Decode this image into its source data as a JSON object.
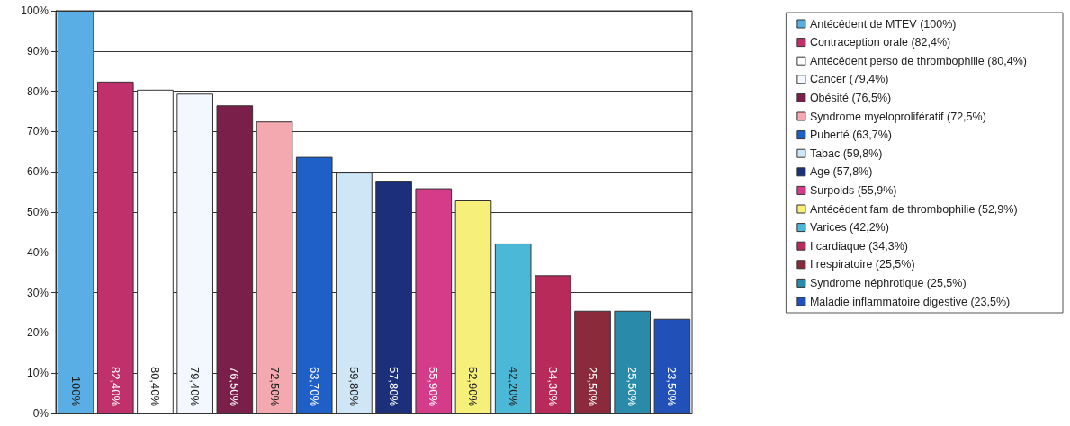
{
  "chart_data": {
    "type": "bar",
    "categories": [
      null,
      null,
      null,
      null,
      null,
      null,
      null,
      null,
      null,
      null,
      null,
      null,
      null,
      null,
      null,
      null
    ],
    "ylim": [
      0,
      100
    ],
    "yticks": [
      {
        "value": 0,
        "label": "0%"
      },
      {
        "value": 10,
        "label": "10%"
      },
      {
        "value": 20,
        "label": "20%"
      },
      {
        "value": 30,
        "label": "30%"
      },
      {
        "value": 40,
        "label": "40%"
      },
      {
        "value": 50,
        "label": "50%"
      },
      {
        "value": 60,
        "label": "60%"
      },
      {
        "value": 70,
        "label": "70%"
      },
      {
        "value": 80,
        "label": "80%"
      },
      {
        "value": 90,
        "label": "90%"
      },
      {
        "value": 100,
        "label": "100%"
      }
    ],
    "grid": "y",
    "legend": "right",
    "series": [
      {
        "name": "Antécédent de MTEV (100%)",
        "color": "#5aaee6",
        "values": [
          100,
          null,
          null,
          null,
          null,
          null,
          null,
          null,
          null,
          null,
          null,
          null,
          null,
          null,
          null,
          null
        ],
        "value_labels": [
          "100%",
          null,
          null,
          null,
          null,
          null,
          null,
          null,
          null,
          null,
          null,
          null,
          null,
          null,
          null,
          null
        ]
      },
      {
        "name": "Contraception orale (82,4%)",
        "color": "#c0306a",
        "values": [
          null,
          82.4,
          null,
          null,
          null,
          null,
          null,
          null,
          null,
          null,
          null,
          null,
          null,
          null,
          null,
          null
        ],
        "value_labels": [
          null,
          "82,40%",
          null,
          null,
          null,
          null,
          null,
          null,
          null,
          null,
          null,
          null,
          null,
          null,
          null,
          null
        ]
      },
      {
        "name": "Antécédent perso de thrombophilie (80,4%)",
        "color": "#ffffff",
        "values": [
          null,
          null,
          80.4,
          null,
          null,
          null,
          null,
          null,
          null,
          null,
          null,
          null,
          null,
          null,
          null,
          null
        ],
        "value_labels": [
          null,
          null,
          "80,40%",
          null,
          null,
          null,
          null,
          null,
          null,
          null,
          null,
          null,
          null,
          null,
          null,
          null
        ]
      },
      {
        "name": "Cancer (79,4%)",
        "color": "#f2f8fd",
        "values": [
          null,
          null,
          null,
          79.4,
          null,
          null,
          null,
          null,
          null,
          null,
          null,
          null,
          null,
          null,
          null,
          null
        ],
        "value_labels": [
          null,
          null,
          null,
          "79,40%",
          null,
          null,
          null,
          null,
          null,
          null,
          null,
          null,
          null,
          null,
          null,
          null
        ]
      },
      {
        "name": "Obésité (76,5%)",
        "color": "#7a1f4a",
        "values": [
          null,
          null,
          null,
          null,
          76.5,
          null,
          null,
          null,
          null,
          null,
          null,
          null,
          null,
          null,
          null,
          null
        ],
        "value_labels": [
          null,
          null,
          null,
          null,
          "76,50%",
          null,
          null,
          null,
          null,
          null,
          null,
          null,
          null,
          null,
          null,
          null
        ]
      },
      {
        "name": "Syndrome myeloprolifératif (72,5%)",
        "color": "#f4a8b0",
        "values": [
          null,
          null,
          null,
          null,
          null,
          72.5,
          null,
          null,
          null,
          null,
          null,
          null,
          null,
          null,
          null,
          null
        ],
        "value_labels": [
          null,
          null,
          null,
          null,
          null,
          "72,50%",
          null,
          null,
          null,
          null,
          null,
          null,
          null,
          null,
          null,
          null
        ]
      },
      {
        "name": "Puberté (63,7%)",
        "color": "#1f5fc8",
        "values": [
          null,
          null,
          null,
          null,
          null,
          null,
          63.7,
          null,
          null,
          null,
          null,
          null,
          null,
          null,
          null,
          null
        ],
        "value_labels": [
          null,
          null,
          null,
          null,
          null,
          null,
          "63,70%",
          null,
          null,
          null,
          null,
          null,
          null,
          null,
          null,
          null
        ]
      },
      {
        "name": "Tabac (59,8%)",
        "color": "#cfe6f6",
        "values": [
          null,
          null,
          null,
          null,
          null,
          null,
          null,
          59.8,
          null,
          null,
          null,
          null,
          null,
          null,
          null,
          null
        ],
        "value_labels": [
          null,
          null,
          null,
          null,
          null,
          null,
          null,
          "59,80%",
          null,
          null,
          null,
          null,
          null,
          null,
          null,
          null
        ]
      },
      {
        "name": "Age (57,8%)",
        "color": "#1c2f7a",
        "values": [
          null,
          null,
          null,
          null,
          null,
          null,
          null,
          null,
          57.8,
          null,
          null,
          null,
          null,
          null,
          null,
          null
        ],
        "value_labels": [
          null,
          null,
          null,
          null,
          null,
          null,
          null,
          null,
          "57,80%",
          null,
          null,
          null,
          null,
          null,
          null,
          null
        ]
      },
      {
        "name": "Surpoids (55,9%)",
        "color": "#d43c8a",
        "values": [
          null,
          null,
          null,
          null,
          null,
          null,
          null,
          null,
          null,
          55.9,
          null,
          null,
          null,
          null,
          null,
          null
        ],
        "value_labels": [
          null,
          null,
          null,
          null,
          null,
          null,
          null,
          null,
          null,
          "55,90%",
          null,
          null,
          null,
          null,
          null,
          null
        ]
      },
      {
        "name": "Antécédent fam de thrombophilie (52,9%)",
        "color": "#f6f07a",
        "values": [
          null,
          null,
          null,
          null,
          null,
          null,
          null,
          null,
          null,
          null,
          52.9,
          null,
          null,
          null,
          null,
          null
        ],
        "value_labels": [
          null,
          null,
          null,
          null,
          null,
          null,
          null,
          null,
          null,
          null,
          "52,90%",
          null,
          null,
          null,
          null,
          null
        ]
      },
      {
        "name": "Varices (42,2%)",
        "color": "#4cb8d8",
        "values": [
          null,
          null,
          null,
          null,
          null,
          null,
          null,
          null,
          null,
          null,
          null,
          42.2,
          null,
          null,
          null,
          null
        ],
        "value_labels": [
          null,
          null,
          null,
          null,
          null,
          null,
          null,
          null,
          null,
          null,
          null,
          "42,20%",
          null,
          null,
          null,
          null
        ]
      },
      {
        "name": "I cardiaque (34,3%)",
        "color": "#b82a5a",
        "values": [
          null,
          null,
          null,
          null,
          null,
          null,
          null,
          null,
          null,
          null,
          null,
          null,
          34.3,
          null,
          null,
          null
        ],
        "value_labels": [
          null,
          null,
          null,
          null,
          null,
          null,
          null,
          null,
          null,
          null,
          null,
          null,
          "34,30%",
          null,
          null,
          null
        ]
      },
      {
        "name": "I respiratoire (25,5%)",
        "color": "#8a2a3a",
        "values": [
          null,
          null,
          null,
          null,
          null,
          null,
          null,
          null,
          null,
          null,
          null,
          null,
          null,
          25.5,
          null,
          null
        ],
        "value_labels": [
          null,
          null,
          null,
          null,
          null,
          null,
          null,
          null,
          null,
          null,
          null,
          null,
          null,
          "25,50%",
          null,
          null
        ]
      },
      {
        "name": "Syndrome néphrotique (25,5%)",
        "color": "#2a8aaa",
        "values": [
          null,
          null,
          null,
          null,
          null,
          null,
          null,
          null,
          null,
          null,
          null,
          null,
          null,
          null,
          25.5,
          null
        ],
        "value_labels": [
          null,
          null,
          null,
          null,
          null,
          null,
          null,
          null,
          null,
          null,
          null,
          null,
          null,
          null,
          "25,50%",
          null
        ]
      },
      {
        "name": "Maladie inflammatoire digestive (23,5%)",
        "color": "#2050b8",
        "values": [
          null,
          null,
          null,
          null,
          null,
          null,
          null,
          null,
          null,
          null,
          null,
          null,
          null,
          null,
          null,
          23.5
        ],
        "value_labels": [
          null,
          null,
          null,
          null,
          null,
          null,
          null,
          null,
          null,
          null,
          null,
          null,
          null,
          null,
          null,
          "23,50%"
        ]
      }
    ]
  }
}
